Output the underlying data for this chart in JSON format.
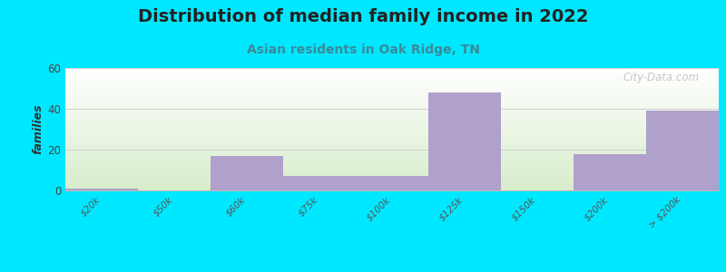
{
  "title": "Distribution of median family income in 2022",
  "subtitle": "Asian residents in Oak Ridge, TN",
  "ylabel": "families",
  "categories": [
    "$20k",
    "$50k",
    "$60k",
    "$75k",
    "$100k",
    "$125k",
    "$150k",
    "$200k",
    "> $200k"
  ],
  "values": [
    1,
    0,
    17,
    7,
    7,
    48,
    0,
    18,
    39
  ],
  "bar_color": "#b0a0cc",
  "bg_outer": "#00e8ff",
  "ylim": [
    0,
    60
  ],
  "yticks": [
    0,
    20,
    40,
    60
  ],
  "title_fontsize": 14,
  "subtitle_fontsize": 10,
  "watermark": "City-Data.com"
}
